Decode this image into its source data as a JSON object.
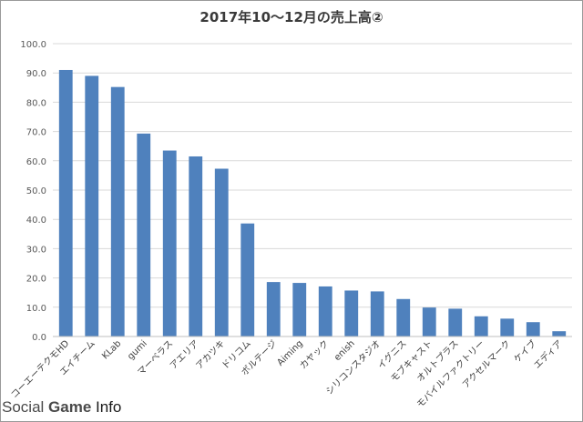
{
  "chart_data": {
    "type": "bar",
    "title": "2017年10～12月の売上高②",
    "xlabel": "",
    "ylabel": "",
    "ylim": [
      0,
      100
    ],
    "yticks": [
      "0.0",
      "10.0",
      "20.0",
      "30.0",
      "40.0",
      "50.0",
      "60.0",
      "70.0",
      "80.0",
      "90.0",
      "100.0"
    ],
    "grid": true,
    "bar_color": "#4f81bd",
    "categories": [
      "コーエーテクモHD",
      "エイチーム",
      "KLab",
      "gumi",
      "マーベラス",
      "アエリア",
      "アカツキ",
      "ドリコム",
      "ボルテージ",
      "Aiming",
      "カヤック",
      "enish",
      "シリコンスタジオ",
      "イグニス",
      "モブキャスト",
      "オルトプラス",
      "モバイルファクトリー",
      "アクセルマーク",
      "ケイブ",
      "エディア"
    ],
    "values": [
      91.0,
      89.0,
      85.2,
      69.3,
      63.5,
      61.5,
      57.3,
      38.6,
      18.6,
      18.3,
      17.1,
      15.7,
      15.4,
      12.8,
      9.9,
      9.5,
      6.9,
      6.1,
      4.9,
      1.8
    ]
  },
  "watermark": {
    "part1": "Social ",
    "part2": "Game",
    "part3": " Info"
  }
}
